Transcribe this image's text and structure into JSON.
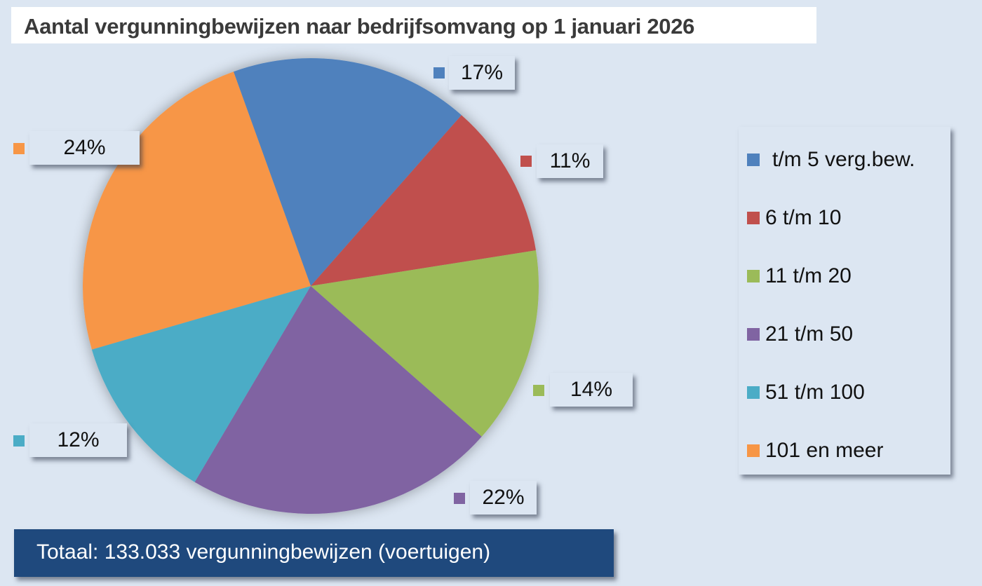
{
  "title": "Aantal vergunningbewijzen naar bedrijfsomvang op 1 januari 2026",
  "total_label": "Totaal: 133.033 vergunningbewijzen (voertuigen)",
  "legend": [
    {
      "label": "t/m 5 verg.bew.",
      "color": "#4f81bd"
    },
    {
      "label": "6 t/m 10",
      "color": "#c0504d"
    },
    {
      "label": "11 t/m 20",
      "color": "#9bbb59"
    },
    {
      "label": "21 t/m 50",
      "color": "#8064a2"
    },
    {
      "label": "51 t/m 100",
      "color": "#4bacc6"
    },
    {
      "label": "101 en meer",
      "color": "#f79646"
    }
  ],
  "data_labels": [
    "17%",
    "11%",
    "14%",
    "22%",
    "12%",
    "24%"
  ],
  "chart_data": {
    "type": "pie",
    "title": "Aantal vergunningbewijzen naar bedrijfsomvang op 1 januari 2026",
    "categories": [
      "t/m 5 verg.bew.",
      "6 t/m 10",
      "11 t/m 20",
      "21 t/m 50",
      "51 t/m 100",
      "101 en meer"
    ],
    "values": [
      17,
      11,
      14,
      22,
      12,
      24
    ],
    "unit": "%",
    "colors": [
      "#4f81bd",
      "#c0504d",
      "#9bbb59",
      "#8064a2",
      "#4bacc6",
      "#f79646"
    ],
    "legend_position": "right",
    "annotation": "Totaal: 133.033 vergunningbewijzen (voertuigen)"
  }
}
